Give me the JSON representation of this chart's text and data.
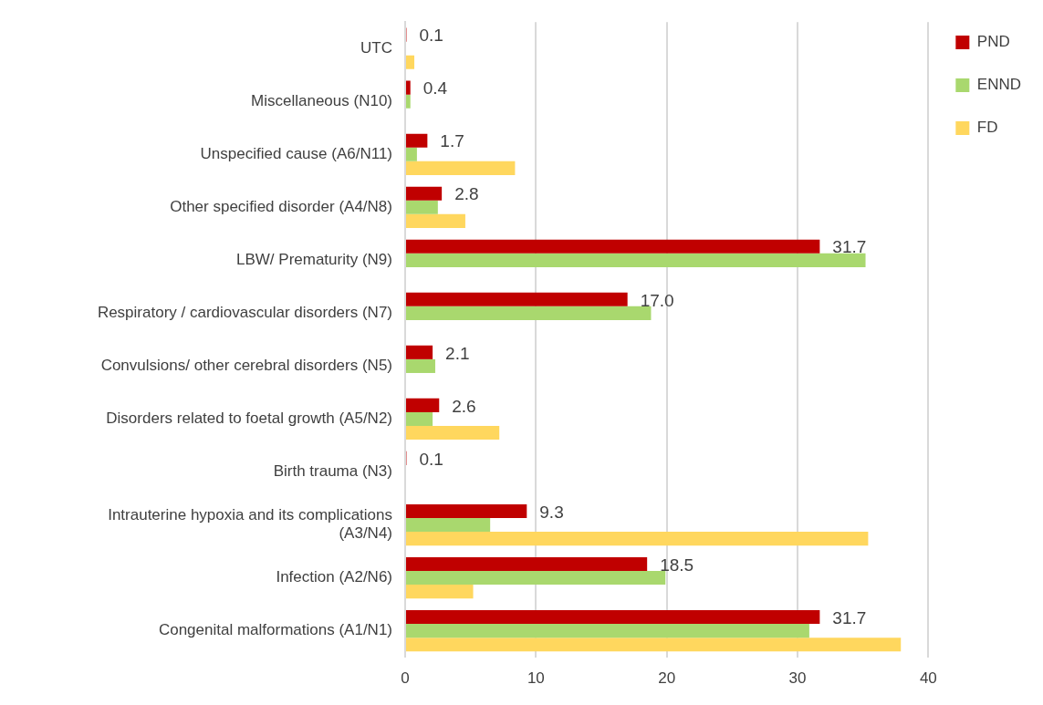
{
  "chart_data": {
    "type": "bar",
    "orientation": "horizontal",
    "categories": [
      "UTC",
      "Miscellaneous (N10)",
      "Unspecified cause (A6/N11)",
      "Other specified disorder (A4/N8)",
      "LBW/ Prematurity (N9)",
      "Respiratory / cardiovascular disorders (N7)",
      "Convulsions/ other cerebral disorders (N5)",
      "Disorders related to foetal growth (A5/N2)",
      "Birth trauma (N3)",
      "Intrauterine hypoxia and its complications (A3/N4)",
      "Infection (A2/N6)",
      "Congenital malformations (A1/N1)"
    ],
    "series": [
      {
        "name": "PND",
        "color": "#c00000",
        "values": [
          0.1,
          0.4,
          1.7,
          2.8,
          31.7,
          17.0,
          2.1,
          2.6,
          0.1,
          9.3,
          18.5,
          31.7
        ],
        "value_labels": [
          "0.1",
          "0.4",
          "1.7",
          "2.8",
          "31.7",
          "17.0",
          "2.1",
          "2.6",
          "0.1",
          "9.3",
          "18.5",
          "31.7"
        ]
      },
      {
        "name": "ENND",
        "color": "#a9d86e",
        "values": [
          null,
          0.4,
          0.9,
          2.5,
          35.2,
          18.8,
          2.3,
          2.1,
          null,
          6.5,
          19.9,
          30.9
        ]
      },
      {
        "name": "FD",
        "color": "#ffd75e",
        "values": [
          0.7,
          null,
          8.4,
          4.6,
          null,
          null,
          null,
          7.2,
          null,
          35.4,
          5.2,
          37.9
        ]
      }
    ],
    "xlim": [
      0,
      40
    ],
    "xticks": [
      0,
      10,
      20,
      30,
      40
    ],
    "grid": "x",
    "legend": "top right"
  }
}
